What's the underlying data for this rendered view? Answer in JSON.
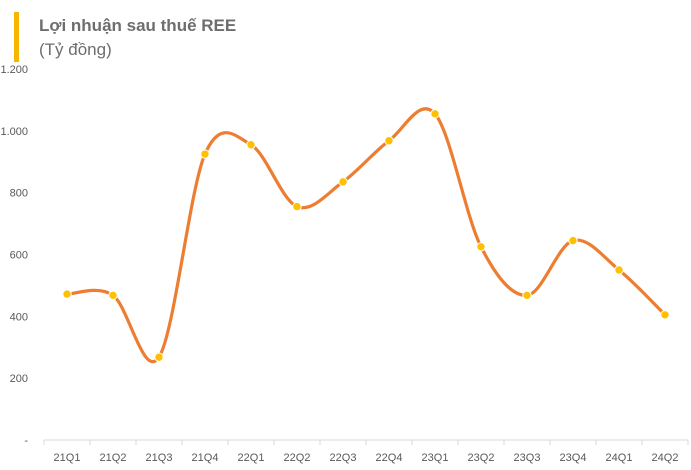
{
  "header": {
    "title": "Lợi nhuận sau thuế REE",
    "unit": "(Tỷ đồng)"
  },
  "colors": {
    "accent": "#f7b500",
    "line": "#ed7d31",
    "marker": "#ffc000",
    "axis": "#d9d9d9",
    "text": "#595959",
    "title": "#6e6e6e"
  },
  "chart_data": {
    "type": "line",
    "title": "Lợi nhuận sau thuế REE",
    "subtitle": "(Tỷ đồng)",
    "xlabel": "",
    "ylabel": "",
    "categories": [
      "21Q1",
      "21Q2",
      "21Q3",
      "21Q4",
      "22Q1",
      "22Q2",
      "22Q3",
      "22Q4",
      "23Q1",
      "23Q2",
      "23Q3",
      "23Q4",
      "24Q1",
      "24Q2"
    ],
    "series": [
      {
        "values": [
          472,
          468,
          268,
          925,
          955,
          755,
          835,
          968,
          1055,
          625,
          468,
          645,
          550,
          405
        ]
      }
    ],
    "ylim": [
      0,
      1200
    ],
    "yticks": [
      0,
      200,
      400,
      600,
      800,
      1000,
      1200
    ],
    "ytick_labels": [
      "-",
      "200",
      "400",
      "600",
      "800",
      "1.000",
      "1.200"
    ],
    "grid": false,
    "smooth": true,
    "legend": "none"
  }
}
